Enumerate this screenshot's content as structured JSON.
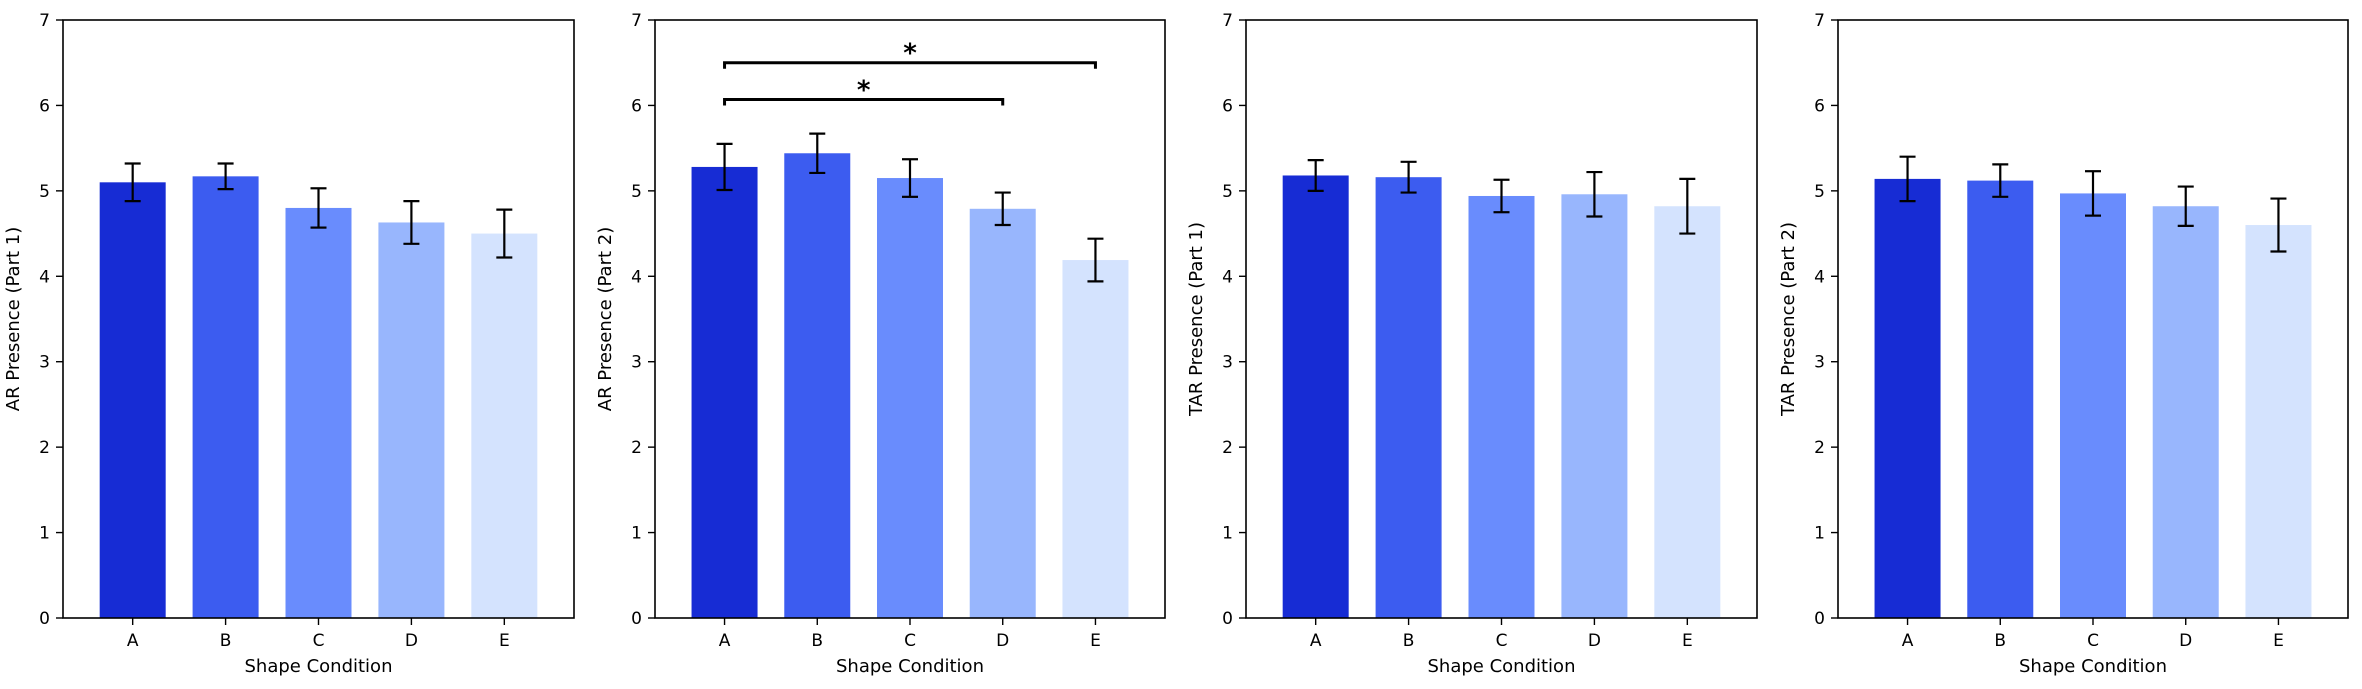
{
  "colors": [
    "#172cd4",
    "#3c5cf0",
    "#698cfd",
    "#98b6fd",
    "#d4e3fe"
  ],
  "chart_data": [
    {
      "type": "bar",
      "xlabel": "Shape Condition",
      "ylabel": "AR Presence (Part 1)",
      "categories": [
        "A",
        "B",
        "C",
        "D",
        "E"
      ],
      "values": [
        5.1,
        5.17,
        4.8,
        4.63,
        4.5
      ],
      "errors": [
        0.22,
        0.15,
        0.23,
        0.25,
        0.28
      ],
      "ylim": [
        0,
        7
      ],
      "yticks": [
        0,
        1,
        2,
        3,
        4,
        5,
        6,
        7
      ],
      "significance": []
    },
    {
      "type": "bar",
      "xlabel": "Shape Condition",
      "ylabel": "AR Presence (Part 2)",
      "categories": [
        "A",
        "B",
        "C",
        "D",
        "E"
      ],
      "values": [
        5.28,
        5.44,
        5.15,
        4.79,
        4.19
      ],
      "errors": [
        0.27,
        0.23,
        0.22,
        0.19,
        0.25
      ],
      "ylim": [
        0,
        7
      ],
      "yticks": [
        0,
        1,
        2,
        3,
        4,
        5,
        6,
        7
      ],
      "significance": [
        {
          "from": "A",
          "to": "E",
          "label": "*",
          "y": 6.5
        },
        {
          "from": "A",
          "to": "D",
          "label": "*",
          "y": 6.07
        }
      ]
    },
    {
      "type": "bar",
      "xlabel": "Shape Condition",
      "ylabel": "TAR Presence (Part 1)",
      "categories": [
        "A",
        "B",
        "C",
        "D",
        "E"
      ],
      "values": [
        5.18,
        5.16,
        4.94,
        4.96,
        4.82
      ],
      "errors": [
        0.18,
        0.18,
        0.19,
        0.26,
        0.32
      ],
      "ylim": [
        0,
        7
      ],
      "yticks": [
        0,
        1,
        2,
        3,
        4,
        5,
        6,
        7
      ],
      "significance": []
    },
    {
      "type": "bar",
      "xlabel": "Shape Condition",
      "ylabel": "TAR Presence (Part 2)",
      "categories": [
        "A",
        "B",
        "C",
        "D",
        "E"
      ],
      "values": [
        5.14,
        5.12,
        4.97,
        4.82,
        4.6
      ],
      "errors": [
        0.26,
        0.19,
        0.26,
        0.23,
        0.31
      ],
      "ylim": [
        0,
        7
      ],
      "yticks": [
        0,
        1,
        2,
        3,
        4,
        5,
        6,
        7
      ],
      "significance": []
    }
  ]
}
